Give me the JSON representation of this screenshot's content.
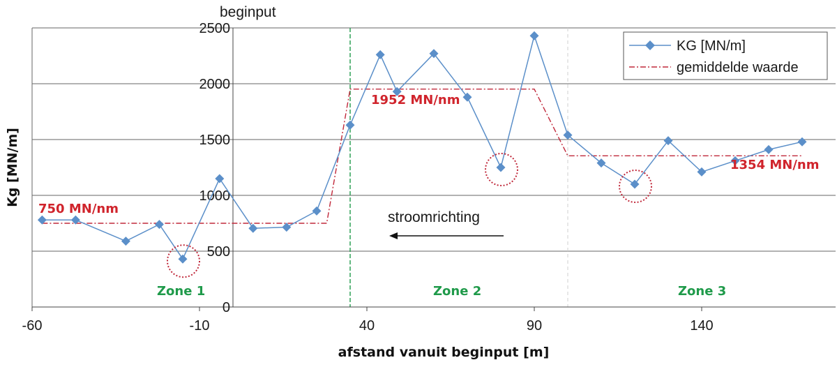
{
  "chart_data": {
    "type": "line",
    "xlabel": "afstand vanuit beginput [m]",
    "ylabel": "Kg [MN/m]",
    "xlim": [
      -60,
      180
    ],
    "ylim": [
      0,
      2500
    ],
    "x_ticks": [
      -60,
      -10,
      40,
      90,
      140
    ],
    "y_ticks": [
      0,
      500,
      1000,
      1500,
      2000,
      2500
    ],
    "grid": "horizontal",
    "legend_position": "top-right",
    "colors": {
      "series": "#5b8fc9",
      "mean": "#c0283a",
      "zone_line": "#1f9a4a",
      "annotation_red": "#d0242c",
      "annotation_green": "#1f9a4a",
      "circle": "#c0283a"
    },
    "series": [
      {
        "name": "KG [MN/m]",
        "style": "line-diamond",
        "x": [
          -57,
          -47,
          -32,
          -22,
          -15,
          -4,
          6,
          16,
          25,
          35,
          44,
          49,
          60,
          70,
          80,
          90,
          100,
          110,
          120,
          130,
          140,
          150,
          160,
          170
        ],
        "y": [
          780,
          780,
          590,
          740,
          430,
          1150,
          705,
          715,
          860,
          1630,
          2260,
          1930,
          2270,
          1880,
          1250,
          2430,
          1540,
          1290,
          1100,
          1490,
          1210,
          1310,
          1410,
          1480
        ]
      },
      {
        "name": "gemiddelde waarde",
        "style": "dash-dot",
        "x": [
          -57,
          28,
          35,
          90,
          100,
          170
        ],
        "y": [
          750,
          750,
          1952,
          1952,
          1354,
          1354
        ]
      }
    ],
    "vertical_lines": [
      {
        "x": 35,
        "label": "beginput",
        "style": "green-dashed"
      },
      {
        "x": 100,
        "style": "light-dashed"
      }
    ],
    "annotations": {
      "mean_zone1": "750 MN/nm",
      "mean_zone2": "1952 MN/nm",
      "mean_zone3": "1354 MN/nm",
      "zone1": "Zone 1",
      "zone2": "Zone 2",
      "zone3": "Zone 3",
      "beginput": "beginput",
      "flow": "stroomrichting"
    },
    "circled_points": [
      {
        "x": -15,
        "y": 430
      },
      {
        "x": 80,
        "y": 1250
      },
      {
        "x": 120,
        "y": 1100
      }
    ]
  }
}
